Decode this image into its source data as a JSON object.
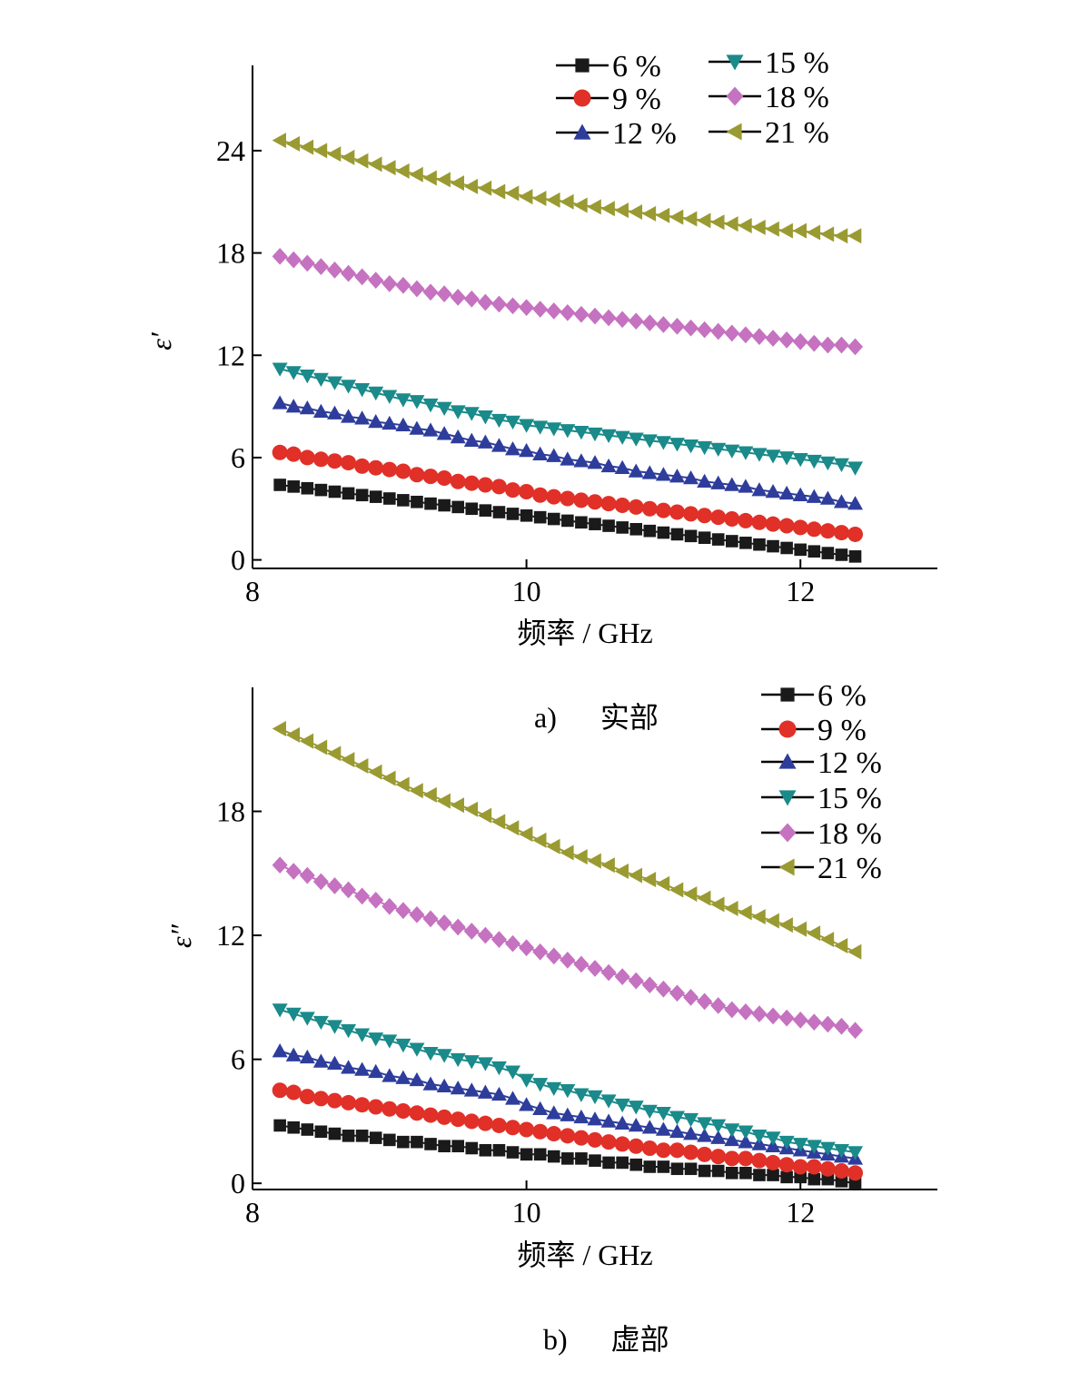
{
  "chart_data": [
    {
      "type": "line",
      "panel": "a)",
      "caption": "实部",
      "xlabel": "频率 / GHz",
      "ylabel": "ε′",
      "xlim": [
        8,
        13
      ],
      "ylim": [
        -0.5,
        29
      ],
      "xticks": [
        8,
        10,
        12
      ],
      "yticks": [
        0,
        6,
        12,
        18,
        24
      ],
      "grid": false,
      "legend_position": "top-right",
      "legend_columns": 2,
      "x": [
        8.2,
        8.3,
        8.4,
        8.5,
        8.6,
        8.7,
        8.8,
        8.9,
        9.0,
        9.1,
        9.2,
        9.3,
        9.4,
        9.5,
        9.6,
        9.7,
        9.8,
        9.9,
        10.0,
        10.1,
        10.2,
        10.3,
        10.4,
        10.5,
        10.6,
        10.7,
        10.8,
        10.9,
        11.0,
        11.1,
        11.2,
        11.3,
        11.4,
        11.5,
        11.6,
        11.7,
        11.8,
        11.9,
        12.0,
        12.1,
        12.2,
        12.3,
        12.4
      ],
      "series": [
        {
          "name": "6 %",
          "marker": "square",
          "color": "#1a1a1a",
          "values": [
            4.4,
            4.3,
            4.2,
            4.1,
            4.0,
            3.9,
            3.8,
            3.7,
            3.6,
            3.5,
            3.4,
            3.3,
            3.2,
            3.1,
            3.0,
            2.9,
            2.8,
            2.7,
            2.6,
            2.5,
            2.4,
            2.3,
            2.2,
            2.1,
            2.0,
            1.9,
            1.8,
            1.7,
            1.6,
            1.5,
            1.4,
            1.3,
            1.2,
            1.1,
            1.0,
            0.9,
            0.8,
            0.7,
            0.6,
            0.5,
            0.4,
            0.3,
            0.2
          ]
        },
        {
          "name": "9 %",
          "marker": "circle",
          "color": "#e03028",
          "values": [
            6.3,
            6.2,
            6.0,
            5.9,
            5.8,
            5.7,
            5.5,
            5.4,
            5.3,
            5.2,
            5.0,
            4.9,
            4.8,
            4.6,
            4.5,
            4.4,
            4.3,
            4.1,
            4.0,
            3.8,
            3.7,
            3.6,
            3.5,
            3.4,
            3.3,
            3.2,
            3.1,
            3.0,
            2.9,
            2.8,
            2.7,
            2.6,
            2.5,
            2.4,
            2.3,
            2.2,
            2.1,
            2.0,
            1.9,
            1.8,
            1.7,
            1.6,
            1.5
          ]
        },
        {
          "name": "12 %",
          "marker": "triangle-up",
          "color": "#2e3d9c",
          "values": [
            9.2,
            9.0,
            8.9,
            8.7,
            8.6,
            8.4,
            8.3,
            8.1,
            8.0,
            7.9,
            7.7,
            7.6,
            7.4,
            7.2,
            7.0,
            6.9,
            6.7,
            6.5,
            6.4,
            6.2,
            6.1,
            5.9,
            5.8,
            5.7,
            5.5,
            5.4,
            5.2,
            5.1,
            5.0,
            4.9,
            4.8,
            4.6,
            4.5,
            4.4,
            4.3,
            4.1,
            4.0,
            3.9,
            3.8,
            3.7,
            3.6,
            3.4,
            3.3
          ]
        },
        {
          "name": "15 %",
          "marker": "triangle-down",
          "color": "#1a8a8a",
          "values": [
            11.2,
            11.0,
            10.8,
            10.6,
            10.4,
            10.2,
            10.0,
            9.8,
            9.6,
            9.4,
            9.3,
            9.1,
            8.9,
            8.7,
            8.6,
            8.4,
            8.2,
            8.1,
            7.9,
            7.8,
            7.7,
            7.6,
            7.5,
            7.4,
            7.3,
            7.2,
            7.1,
            7.0,
            6.9,
            6.8,
            6.7,
            6.6,
            6.5,
            6.4,
            6.3,
            6.2,
            6.1,
            6.0,
            5.9,
            5.8,
            5.7,
            5.6,
            5.4
          ]
        },
        {
          "name": "18 %",
          "marker": "diamond",
          "color": "#c572c0",
          "values": [
            17.8,
            17.6,
            17.4,
            17.2,
            17.0,
            16.8,
            16.6,
            16.4,
            16.2,
            16.1,
            15.9,
            15.7,
            15.6,
            15.4,
            15.3,
            15.1,
            15.0,
            14.9,
            14.8,
            14.7,
            14.6,
            14.5,
            14.4,
            14.3,
            14.2,
            14.1,
            14.0,
            13.9,
            13.8,
            13.7,
            13.6,
            13.5,
            13.4,
            13.3,
            13.2,
            13.1,
            13.0,
            12.9,
            12.8,
            12.7,
            12.6,
            12.6,
            12.5
          ]
        },
        {
          "name": "21 %",
          "marker": "triangle-left",
          "color": "#9a9a32",
          "values": [
            24.6,
            24.4,
            24.2,
            24.0,
            23.8,
            23.6,
            23.4,
            23.2,
            23.0,
            22.8,
            22.6,
            22.4,
            22.3,
            22.1,
            21.9,
            21.8,
            21.6,
            21.5,
            21.3,
            21.2,
            21.1,
            21.0,
            20.8,
            20.7,
            20.6,
            20.5,
            20.4,
            20.3,
            20.2,
            20.1,
            20.0,
            19.9,
            19.8,
            19.7,
            19.6,
            19.5,
            19.4,
            19.3,
            19.3,
            19.2,
            19.1,
            19.0,
            19.0
          ]
        }
      ]
    },
    {
      "type": "line",
      "panel": "b)",
      "caption": "虚部",
      "xlabel": "频率 / GHz",
      "ylabel": "ε″",
      "xlim": [
        8,
        13
      ],
      "ylim": [
        -0.3,
        24
      ],
      "xticks": [
        8,
        10,
        12
      ],
      "yticks": [
        0,
        6,
        12,
        18
      ],
      "grid": false,
      "legend_position": "top-right",
      "legend_columns": 1,
      "x": [
        8.2,
        8.3,
        8.4,
        8.5,
        8.6,
        8.7,
        8.8,
        8.9,
        9.0,
        9.1,
        9.2,
        9.3,
        9.4,
        9.5,
        9.6,
        9.7,
        9.8,
        9.9,
        10.0,
        10.1,
        10.2,
        10.3,
        10.4,
        10.5,
        10.6,
        10.7,
        10.8,
        10.9,
        11.0,
        11.1,
        11.2,
        11.3,
        11.4,
        11.5,
        11.6,
        11.7,
        11.8,
        11.9,
        12.0,
        12.1,
        12.2,
        12.3,
        12.4
      ],
      "series": [
        {
          "name": "6 %",
          "marker": "square",
          "color": "#1a1a1a",
          "values": [
            2.8,
            2.7,
            2.6,
            2.5,
            2.4,
            2.3,
            2.3,
            2.2,
            2.1,
            2.0,
            2.0,
            1.9,
            1.8,
            1.8,
            1.7,
            1.6,
            1.6,
            1.5,
            1.4,
            1.4,
            1.3,
            1.2,
            1.2,
            1.1,
            1.0,
            1.0,
            0.9,
            0.8,
            0.8,
            0.7,
            0.7,
            0.6,
            0.6,
            0.5,
            0.5,
            0.4,
            0.4,
            0.3,
            0.3,
            0.2,
            0.2,
            0.1,
            0.0
          ]
        },
        {
          "name": "9 %",
          "marker": "circle",
          "color": "#e03028",
          "values": [
            4.5,
            4.4,
            4.2,
            4.1,
            4.0,
            3.9,
            3.8,
            3.7,
            3.6,
            3.5,
            3.4,
            3.3,
            3.2,
            3.1,
            3.0,
            2.9,
            2.8,
            2.7,
            2.6,
            2.5,
            2.4,
            2.3,
            2.2,
            2.1,
            2.0,
            1.9,
            1.8,
            1.7,
            1.6,
            1.6,
            1.5,
            1.4,
            1.3,
            1.2,
            1.2,
            1.1,
            1.0,
            0.9,
            0.8,
            0.8,
            0.7,
            0.6,
            0.5
          ]
        },
        {
          "name": "12 %",
          "marker": "triangle-up",
          "color": "#2e3d9c",
          "values": [
            6.4,
            6.2,
            6.1,
            5.9,
            5.8,
            5.6,
            5.5,
            5.4,
            5.2,
            5.1,
            5.0,
            4.8,
            4.7,
            4.6,
            4.5,
            4.4,
            4.3,
            4.1,
            3.8,
            3.6,
            3.4,
            3.3,
            3.2,
            3.1,
            3.0,
            2.9,
            2.8,
            2.7,
            2.6,
            2.5,
            2.4,
            2.3,
            2.2,
            2.1,
            2.0,
            1.9,
            1.8,
            1.7,
            1.6,
            1.5,
            1.4,
            1.3,
            1.2
          ]
        },
        {
          "name": "15 %",
          "marker": "triangle-down",
          "color": "#1a8a8a",
          "values": [
            8.4,
            8.2,
            8.0,
            7.8,
            7.6,
            7.4,
            7.2,
            7.0,
            6.9,
            6.7,
            6.5,
            6.3,
            6.2,
            6.0,
            5.9,
            5.8,
            5.6,
            5.4,
            5.0,
            4.8,
            4.6,
            4.5,
            4.3,
            4.2,
            4.0,
            3.8,
            3.7,
            3.5,
            3.4,
            3.2,
            3.1,
            2.9,
            2.8,
            2.6,
            2.5,
            2.3,
            2.2,
            2.0,
            1.9,
            1.8,
            1.7,
            1.6,
            1.5
          ]
        },
        {
          "name": "18 %",
          "marker": "diamond",
          "color": "#c572c0",
          "values": [
            15.4,
            15.1,
            14.9,
            14.6,
            14.4,
            14.2,
            13.9,
            13.7,
            13.4,
            13.2,
            13.0,
            12.8,
            12.6,
            12.4,
            12.2,
            12.0,
            11.8,
            11.6,
            11.4,
            11.2,
            11.0,
            10.8,
            10.6,
            10.4,
            10.2,
            10.0,
            9.8,
            9.6,
            9.4,
            9.2,
            9.0,
            8.8,
            8.6,
            8.4,
            8.3,
            8.2,
            8.1,
            8.0,
            7.9,
            7.8,
            7.7,
            7.6,
            7.4
          ]
        },
        {
          "name": "21 %",
          "marker": "triangle-left",
          "color": "#9a9a32",
          "values": [
            22.0,
            21.7,
            21.4,
            21.1,
            20.8,
            20.5,
            20.2,
            19.9,
            19.6,
            19.3,
            19.0,
            18.8,
            18.5,
            18.3,
            18.1,
            17.8,
            17.5,
            17.2,
            16.9,
            16.6,
            16.3,
            16.0,
            15.8,
            15.6,
            15.4,
            15.1,
            14.9,
            14.7,
            14.5,
            14.2,
            14.0,
            13.8,
            13.5,
            13.3,
            13.1,
            12.9,
            12.7,
            12.5,
            12.3,
            12.1,
            11.8,
            11.5,
            11.2
          ]
        }
      ]
    }
  ]
}
